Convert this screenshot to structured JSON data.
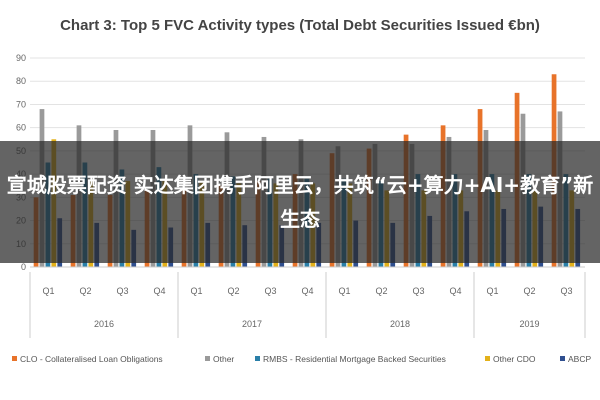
{
  "overlay_caption": "宣城股票配资 实达集团携手阿里云，共筑“云+算力+AI+教育”新生态",
  "colors": {
    "CLO": "#e8732a",
    "Other": "#9a9a9a",
    "RMBS": "#2a7fa8",
    "OtherCDO": "#e3b11a",
    "ABCP": "#2f4f8f",
    "grid": "#e3e3e3",
    "axis": "#cccccc"
  },
  "chart_data": {
    "type": "bar",
    "title": "Chart 3: Top 5 FVC Activity types (Total Debt Securities Issued €bn)",
    "categories": [
      "Q1",
      "Q2",
      "Q3",
      "Q4",
      "Q1",
      "Q2",
      "Q3",
      "Q4",
      "Q1",
      "Q2",
      "Q3",
      "Q4",
      "Q1",
      "Q2",
      "Q3"
    ],
    "years": [
      {
        "label": "2016",
        "span": 4
      },
      {
        "label": "2017",
        "span": 4
      },
      {
        "label": "2018",
        "span": 4
      },
      {
        "label": "2019",
        "span": 3
      }
    ],
    "ylim": [
      0,
      90
    ],
    "yticks": [
      0,
      10,
      20,
      30,
      40,
      50,
      60,
      70,
      80,
      90
    ],
    "grid": true,
    "legend_position": "bottom",
    "series": [
      {
        "name": "CLO - Collateralised Loan Obligations",
        "color_key": "CLO",
        "values": [
          30,
          31,
          31,
          33,
          34,
          35,
          37,
          40,
          49,
          51,
          57,
          61,
          68,
          75,
          83
        ]
      },
      {
        "name": "Other",
        "color_key": "Other",
        "values": [
          68,
          61,
          59,
          59,
          61,
          58,
          56,
          55,
          52,
          53,
          53,
          56,
          59,
          66,
          67
        ]
      },
      {
        "name": "RMBS - Residential Mortgage Backed Securities",
        "color_key": "RMBS",
        "values": [
          45,
          45,
          42,
          43,
          40,
          39,
          38,
          38,
          38,
          37,
          40,
          40,
          40,
          40,
          40
        ]
      },
      {
        "name": "Other CDO",
        "color_key": "OtherCDO",
        "values": [
          55,
          37,
          37,
          37,
          37,
          36,
          36,
          36,
          36,
          33,
          33,
          33,
          33,
          33,
          33
        ]
      },
      {
        "name": "ABCP",
        "color_key": "ABCP",
        "values": [
          21,
          19,
          16,
          17,
          19,
          18,
          18,
          19,
          20,
          19,
          22,
          24,
          25,
          26,
          25
        ]
      }
    ]
  }
}
